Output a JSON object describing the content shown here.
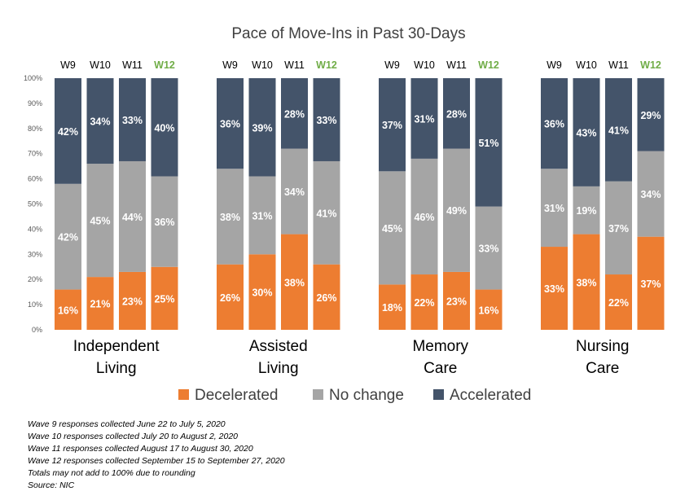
{
  "chart_data": {
    "type": "bar",
    "stacked": true,
    "title": "Pace of Move-Ins in Past 30-Days",
    "groups": [
      "Independent Living",
      "Assisted Living",
      "Memory Care",
      "Nursing Care"
    ],
    "group_label_lines": [
      [
        "Independent",
        "Living"
      ],
      [
        "Assisted",
        "Living"
      ],
      [
        "Memory",
        "Care"
      ],
      [
        "Nursing",
        "Care"
      ]
    ],
    "categories": [
      "W9",
      "W10",
      "W11",
      "W12"
    ],
    "highlight_category": "W12",
    "highlight_color": "#70ad47",
    "series": [
      {
        "name": "Decelerated",
        "color": "#ed7d31",
        "values": [
          [
            16,
            21,
            23,
            25
          ],
          [
            26,
            30,
            38,
            26
          ],
          [
            18,
            22,
            23,
            16
          ],
          [
            33,
            38,
            22,
            37
          ]
        ]
      },
      {
        "name": "No change",
        "color": "#a5a5a5",
        "values": [
          [
            42,
            45,
            44,
            36
          ],
          [
            38,
            31,
            34,
            41
          ],
          [
            45,
            46,
            49,
            33
          ],
          [
            31,
            19,
            37,
            34
          ]
        ]
      },
      {
        "name": "Accelerated",
        "color": "#44546a",
        "values": [
          [
            42,
            34,
            33,
            40
          ],
          [
            36,
            39,
            28,
            33
          ],
          [
            37,
            31,
            28,
            51
          ],
          [
            36,
            43,
            41,
            29
          ]
        ]
      }
    ],
    "y_ticks": [
      "0%",
      "10%",
      "20%",
      "30%",
      "40%",
      "50%",
      "60%",
      "70%",
      "80%",
      "90%",
      "100%"
    ],
    "ylim": [
      0,
      100
    ],
    "value_suffix": "%",
    "legend_position": "bottom",
    "grid": false
  },
  "footnotes": [
    "Wave 9 responses collected June 22 to July 5, 2020",
    "Wave 10 responses collected July 20 to August 2, 2020",
    "Wave 11 responses collected August 17 to August 30, 2020",
    "Wave 12 responses collected September 15 to September 27, 2020",
    "Totals may not add to 100% due to rounding",
    "Source: NIC"
  ]
}
